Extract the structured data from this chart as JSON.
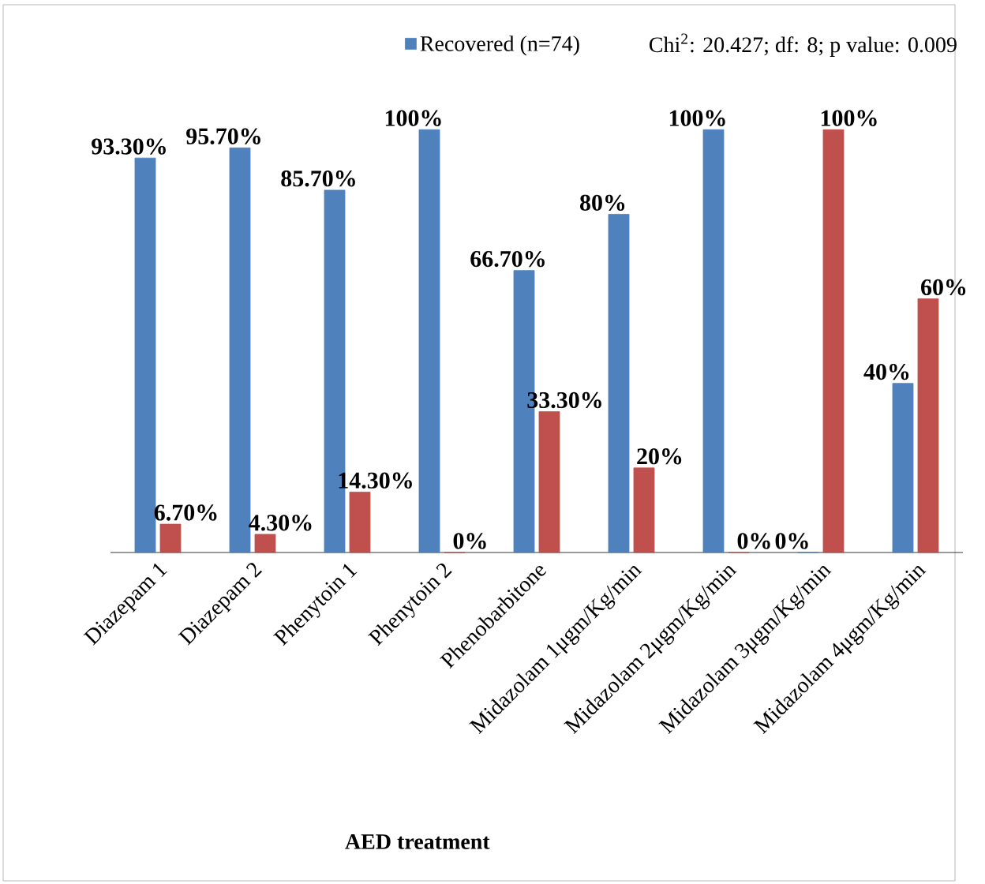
{
  "chart_data": {
    "type": "bar",
    "xlabel": "AED treatment",
    "categories": [
      "Diazepam 1",
      "Diazepam 2",
      "Phenytoin 1",
      "Phenytoin 2",
      "Phenobarbitone",
      "Midazolam 1μgm/Kg/min",
      "Midazolam 2μgm/Kg/min",
      "Midazolam 3μgm/Kg/min",
      "Midazolam 4μgm/Kg/min"
    ],
    "series": [
      {
        "name": "Recovered (n=74)",
        "color": "#4f81bd",
        "values": [
          93.3,
          95.7,
          85.7,
          100,
          66.7,
          80,
          100,
          0,
          40
        ],
        "value_labels": [
          "93.30%",
          "95.70%",
          "85.70%",
          "100%",
          "66.70%",
          "80%",
          "100%",
          "0%",
          "40%"
        ]
      },
      {
        "color": "#c0504d",
        "values": [
          6.7,
          4.3,
          14.3,
          0,
          33.3,
          20,
          0,
          100,
          60
        ],
        "value_labels": [
          "6.70%",
          "4.30%",
          "14.30%",
          "0%",
          "33.30%",
          "20%",
          "0%",
          "100%",
          "60%"
        ]
      }
    ],
    "annotations": [
      "Chi$^{2}$: 20.427; df: 8; p value: 0.009"
    ],
    "legend": "top",
    "tick_labels": "x"
  }
}
